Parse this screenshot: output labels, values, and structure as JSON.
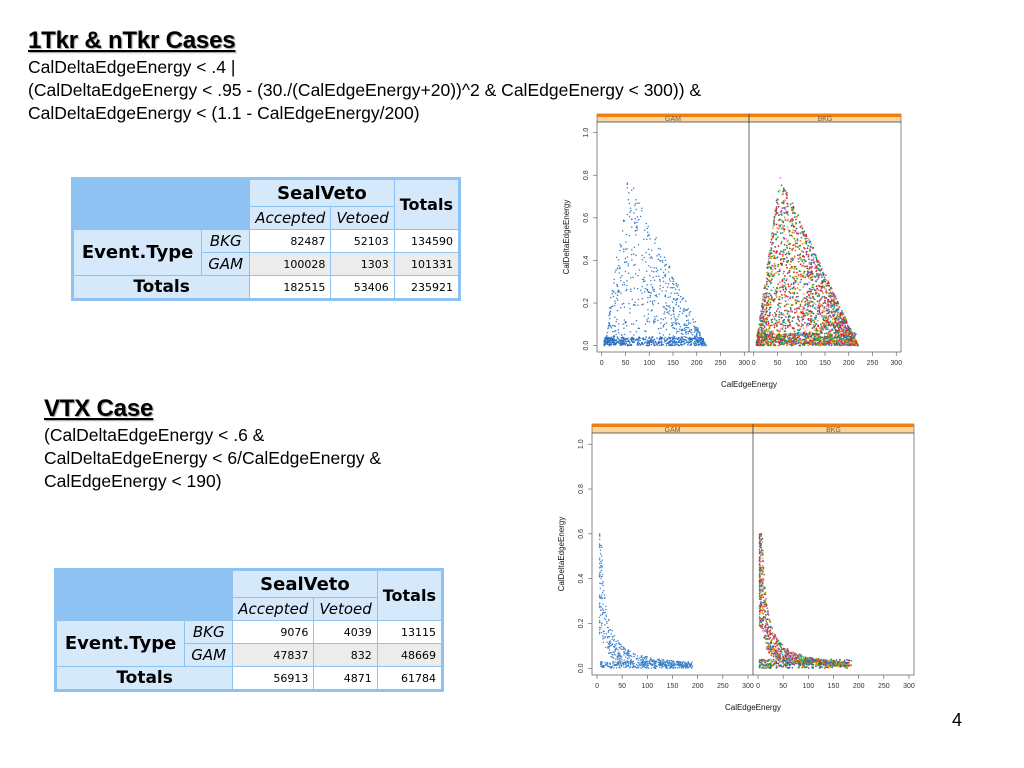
{
  "page_number": "4",
  "sections": [
    {
      "heading": "1Tkr & nTkr Cases",
      "cut_lines": [
        "CalDeltaEdgeEnergy < .4 |",
        "(CalDeltaEdgeEnergy < .95 - (30./(CalEdgeEnergy+20))^2 & CalEdgeEnergy < 300)) &",
        "CalDeltaEdgeEnergy < (1.1 - CalEdgeEnergy/200)"
      ],
      "table": {
        "group_header": "SealVeto",
        "totals_header": "Totals",
        "sub_headers": [
          "Accepted",
          "Vetoed"
        ],
        "row_group": "Event.Type",
        "rows": [
          {
            "label": "BKG",
            "values": [
              "82487",
              "52103",
              "134590"
            ]
          },
          {
            "label": "GAM",
            "values": [
              "100028",
              "1303",
              "101331"
            ]
          }
        ],
        "totals_row": {
          "label": "Totals",
          "values": [
            "182515",
            "53406",
            "235921"
          ]
        }
      }
    },
    {
      "heading": "VTX Case",
      "cut_lines": [
        "(CalDeltaEdgeEnergy < .6  &",
        "CalDeltaEdgeEnergy < 6/CalEdgeEnergy &",
        "CalEdgeEnergy < 190)"
      ],
      "table": {
        "group_header": "SealVeto",
        "totals_header": "Totals",
        "sub_headers": [
          "Accepted",
          "Vetoed"
        ],
        "row_group": "Event.Type",
        "rows": [
          {
            "label": "BKG",
            "values": [
              "9076",
              "4039",
              "13115"
            ]
          },
          {
            "label": "GAM",
            "values": [
              "47837",
              "832",
              "48669"
            ]
          }
        ],
        "totals_row": {
          "label": "Totals",
          "values": [
            "56913",
            "4871",
            "61784"
          ]
        }
      }
    }
  ],
  "chart_data": [
    {
      "type": "scatter",
      "xlabel": "CalEdgeEnergy",
      "ylabel": "CalDeltaEdgeEnergy",
      "panels": [
        "GAM",
        "BKG"
      ],
      "xlim": [
        -10,
        310
      ],
      "ylim": [
        -0.03,
        1.05
      ],
      "x_ticks": [
        "0",
        "50",
        "100",
        "150",
        "200",
        "250",
        "300"
      ],
      "y_ticks": [
        "0.0",
        "0.2",
        "0.4",
        "0.6",
        "0.8",
        "1.0"
      ],
      "strip_colors": {
        "strip": "#fad59e",
        "bar": "#f07f12"
      },
      "series": [
        {
          "panel": "GAM",
          "region": "triangle band up to about 0.8 at CalEdgeEnergy ~55, falling to 0 near 215; dense cluster near 0",
          "color": "#3a7fc9"
        },
        {
          "panel": "BKG",
          "region": "dense multicolor triangle band, peak ~0.8 at CalEdgeEnergy ~55, extending to ~220",
          "color": "multi"
        }
      ]
    },
    {
      "type": "scatter",
      "xlabel": "CalEdgeEnergy",
      "ylabel": "CalDeltaEdgeEnergy",
      "panels": [
        "GAM",
        "BKG"
      ],
      "xlim": [
        -10,
        310
      ],
      "ylim": [
        -0.03,
        1.05
      ],
      "x_ticks": [
        "0",
        "50",
        "100",
        "150",
        "200",
        "250",
        "300"
      ],
      "y_ticks": [
        "0.0",
        "0.2",
        "0.4",
        "0.6",
        "0.8",
        "1.0"
      ],
      "strip_colors": {
        "strip": "#fad59e",
        "bar": "#f07f12"
      },
      "series": [
        {
          "panel": "GAM",
          "region": "hyperbolic falloff from ~0.6 at CalEdgeEnergy ~10 toward 0 by ~190",
          "color": "#3a7fc9"
        },
        {
          "panel": "BKG",
          "region": "hyperbolic falloff from ~0.6 at CalEdgeEnergy ~10 toward 0 by ~190",
          "color": "multi"
        }
      ]
    }
  ]
}
